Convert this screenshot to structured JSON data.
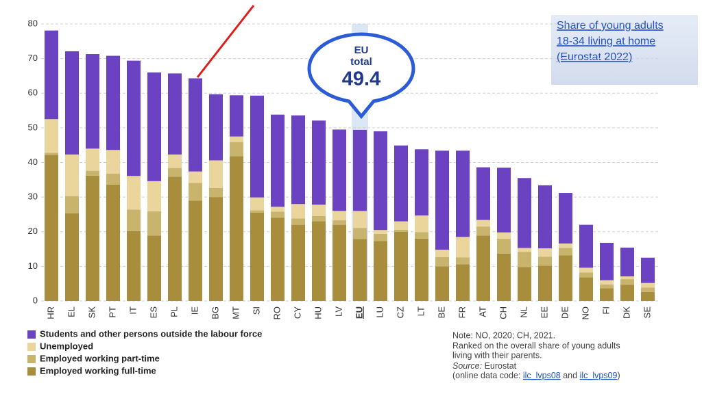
{
  "chart_data": {
    "type": "stacked_bar",
    "categories": [
      "HR",
      "EL",
      "SK",
      "PT",
      "IT",
      "ES",
      "PL",
      "IE",
      "BG",
      "MT",
      "SI",
      "RO",
      "CY",
      "HU",
      "LV",
      "EU",
      "LU",
      "CZ",
      "LT",
      "BE",
      "FR",
      "AT",
      "CH",
      "NL",
      "EE",
      "DE",
      "NO",
      "FI",
      "DK",
      "SE"
    ],
    "series": [
      {
        "name": "Students and other persons outside the labour force",
        "color": "#6a42c2",
        "values": [
          25.6,
          29.8,
          27.3,
          27.2,
          33.3,
          31.4,
          23.4,
          26.9,
          19.1,
          11.9,
          29.4,
          26.6,
          25.6,
          24.3,
          23.5,
          23.4,
          28.5,
          21.9,
          19.1,
          28.6,
          24.9,
          15.2,
          18.7,
          20.2,
          18.2,
          14.6,
          12.4,
          10.8,
          8.3,
          7.3
        ]
      },
      {
        "name": "Unemployed",
        "color": "#ead59c",
        "values": [
          9.7,
          12.0,
          6.4,
          6.8,
          9.7,
          8.7,
          3.9,
          3.3,
          8.0,
          1.6,
          3.7,
          1.4,
          4.2,
          3.3,
          2.7,
          4.9,
          1.1,
          2.4,
          4.8,
          2.1,
          5.9,
          1.9,
          1.8,
          1.1,
          2.4,
          1.3,
          1.4,
          1.2,
          0.8,
          1.3
        ]
      },
      {
        "name": "Employed working part-time",
        "color": "#c8b46c",
        "values": [
          0.6,
          5.0,
          1.4,
          3.2,
          6.2,
          7.0,
          2.5,
          5.1,
          2.6,
          4.1,
          0.7,
          1.8,
          1.8,
          1.5,
          1.3,
          3.2,
          2.1,
          0.6,
          1.9,
          2.7,
          2.0,
          2.6,
          4.3,
          4.4,
          2.6,
          2.1,
          1.4,
          1.1,
          1.6,
          1.3
        ]
      },
      {
        "name": "Employed working full-time",
        "color": "#a88d3c",
        "values": [
          42.2,
          25.3,
          36.2,
          33.6,
          20.2,
          18.9,
          35.9,
          29.0,
          30.0,
          41.8,
          25.5,
          24.0,
          22.0,
          23.0,
          22.0,
          17.9,
          17.3,
          20.0,
          18.0,
          10.0,
          10.6,
          18.9,
          13.7,
          9.8,
          10.2,
          13.2,
          6.8,
          3.7,
          4.7,
          2.6
        ]
      }
    ],
    "ylim": [
      0,
      80
    ],
    "yticks": [
      0,
      10,
      20,
      30,
      40,
      50,
      60,
      70,
      80
    ],
    "grid": true,
    "highlight": "EU",
    "callout_lines": [
      "EU",
      "total"
    ],
    "callout_value": 49.4
  },
  "note_box": {
    "lines": [
      "Share of young adults",
      "18-34 living at home",
      "(Eurostat 2022)"
    ]
  },
  "notes": {
    "lines": [
      "Note: NO, 2020; CH, 2021.",
      "Ranked on the overall share of young adults",
      "living with their parents."
    ],
    "source_label": "Source:",
    "source": "Eurostat",
    "code_prefix": "(online data code: ",
    "code_1": "ilc_lvps08",
    "code_and": " and ",
    "code_2": "ilc_lvps09",
    "code_suffix": ")"
  }
}
